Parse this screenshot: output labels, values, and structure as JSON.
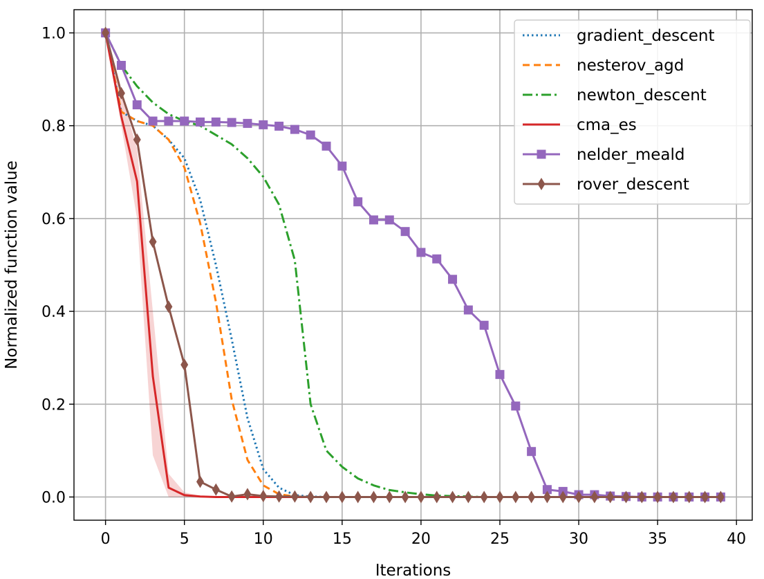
{
  "chart_data": {
    "type": "line",
    "title": "",
    "xlabel": "Iterations",
    "ylabel": "Normalized function value",
    "xlim": [
      -2,
      41
    ],
    "ylim": [
      -0.05,
      1.05
    ],
    "xticks": [
      0,
      5,
      10,
      15,
      20,
      25,
      30,
      35,
      40
    ],
    "yticks": [
      0.0,
      0.2,
      0.4,
      0.6,
      0.8,
      1.0
    ],
    "xtick_labels": [
      "0",
      "5",
      "10",
      "15",
      "20",
      "25",
      "30",
      "35",
      "40"
    ],
    "ytick_labels": [
      "0.0",
      "0.2",
      "0.4",
      "0.6",
      "0.8",
      "1.0"
    ],
    "grid": true,
    "legend_position": "top-right",
    "series": [
      {
        "name": "gradient_descent",
        "color": "#1f77b4",
        "style": "dotted",
        "marker": "none",
        "x": [
          0,
          1,
          2,
          3,
          4,
          5,
          6,
          7,
          8,
          9,
          10,
          11,
          12,
          13,
          14,
          15,
          16,
          17,
          18,
          19,
          20,
          21,
          22,
          23,
          24,
          25,
          26,
          27,
          28,
          29,
          30,
          31,
          32,
          33,
          34,
          35,
          36,
          37,
          38,
          39
        ],
        "y": [
          1.0,
          0.83,
          0.81,
          0.8,
          0.77,
          0.73,
          0.64,
          0.5,
          0.34,
          0.17,
          0.06,
          0.02,
          0.004,
          0.001,
          0,
          0,
          0,
          0,
          0,
          0,
          0,
          0,
          0,
          0,
          0,
          0,
          0,
          0,
          0,
          0,
          0,
          0,
          0,
          0,
          0,
          0,
          0,
          0,
          0,
          0
        ]
      },
      {
        "name": "nesterov_agd",
        "color": "#ff7f0e",
        "style": "dashed",
        "marker": "none",
        "x": [
          0,
          1,
          2,
          3,
          4,
          5,
          6,
          7,
          8,
          9,
          10,
          11,
          12,
          13,
          14,
          15,
          16,
          17,
          18,
          19,
          20,
          21,
          22,
          23,
          24,
          25,
          26,
          27,
          28,
          29,
          30,
          31,
          32,
          33,
          34,
          35,
          36,
          37,
          38,
          39
        ],
        "y": [
          1.0,
          0.83,
          0.81,
          0.8,
          0.77,
          0.71,
          0.59,
          0.42,
          0.21,
          0.08,
          0.025,
          0.006,
          0.001,
          0,
          0,
          0,
          0,
          0,
          0,
          0,
          0,
          0,
          0,
          0,
          0,
          0,
          0,
          0,
          0,
          0,
          0,
          0,
          0,
          0,
          0,
          0,
          0,
          0,
          0,
          0
        ]
      },
      {
        "name": "newton_descent",
        "color": "#2ca02c",
        "style": "dashdot",
        "marker": "none",
        "x": [
          0,
          1,
          2,
          3,
          4,
          5,
          6,
          7,
          8,
          9,
          10,
          11,
          12,
          13,
          14,
          15,
          16,
          17,
          18,
          19,
          20,
          21,
          22,
          23,
          24,
          25,
          26,
          27,
          28,
          29,
          30,
          31,
          32,
          33,
          34,
          35,
          36,
          37,
          38,
          39
        ],
        "y": [
          1.0,
          0.93,
          0.885,
          0.85,
          0.825,
          0.81,
          0.8,
          0.78,
          0.76,
          0.73,
          0.69,
          0.63,
          0.51,
          0.2,
          0.1,
          0.065,
          0.04,
          0.025,
          0.015,
          0.01,
          0.006,
          0.003,
          0.002,
          0.001,
          0,
          0,
          0,
          0,
          0,
          0,
          0,
          0,
          0,
          0,
          0,
          0,
          0,
          0,
          0,
          0
        ]
      },
      {
        "name": "cma_es",
        "color": "#d62728",
        "style": "solid",
        "marker": "none",
        "band": {
          "color": "#d62728",
          "opacity": 0.2
        },
        "x": [
          0,
          1,
          2,
          3,
          4,
          5,
          6,
          7,
          8,
          9,
          10,
          11,
          12,
          13,
          14,
          15,
          16,
          17,
          18,
          19,
          20,
          21,
          22,
          23,
          24,
          25,
          26,
          27,
          28,
          29,
          30,
          31,
          32,
          33,
          34,
          35,
          36,
          37,
          38,
          39
        ],
        "y": [
          1.0,
          0.82,
          0.68,
          0.26,
          0.02,
          0.004,
          0.001,
          0,
          0,
          0,
          0,
          0,
          0,
          0,
          0,
          0,
          0,
          0,
          0,
          0,
          0,
          0,
          0,
          0,
          0,
          0,
          0,
          0,
          0,
          0,
          0,
          0,
          0,
          0,
          0,
          0,
          0,
          0,
          0,
          0
        ],
        "y_low": [
          1.0,
          0.8,
          0.6,
          0.09,
          0.0,
          0,
          0,
          0,
          0,
          0,
          0,
          0,
          0,
          0,
          0,
          0,
          0,
          0,
          0,
          0,
          0,
          0,
          0,
          0,
          0,
          0,
          0,
          0,
          0,
          0,
          0,
          0,
          0,
          0,
          0,
          0,
          0,
          0,
          0,
          0
        ],
        "y_high": [
          1.0,
          0.87,
          0.75,
          0.4,
          0.05,
          0.01,
          0.003,
          0.001,
          0,
          0,
          0,
          0,
          0,
          0,
          0,
          0,
          0,
          0,
          0,
          0,
          0,
          0,
          0,
          0,
          0,
          0,
          0,
          0,
          0,
          0,
          0,
          0,
          0,
          0,
          0,
          0,
          0,
          0,
          0,
          0
        ]
      },
      {
        "name": "nelder_meald",
        "color": "#9467bd",
        "style": "solid",
        "marker": "square",
        "x": [
          0,
          1,
          2,
          3,
          4,
          5,
          6,
          7,
          8,
          9,
          10,
          11,
          12,
          13,
          14,
          15,
          16,
          17,
          18,
          19,
          20,
          21,
          22,
          23,
          24,
          25,
          26,
          27,
          28,
          29,
          30,
          31,
          32,
          33,
          34,
          35,
          36,
          37,
          38,
          39
        ],
        "y": [
          1.0,
          0.93,
          0.845,
          0.81,
          0.81,
          0.81,
          0.808,
          0.808,
          0.807,
          0.805,
          0.802,
          0.799,
          0.792,
          0.78,
          0.756,
          0.713,
          0.636,
          0.597,
          0.597,
          0.572,
          0.527,
          0.513,
          0.469,
          0.403,
          0.37,
          0.264,
          0.196,
          0.098,
          0.016,
          0.012,
          0.005,
          0.005,
          0.002,
          0.001,
          0,
          0,
          0,
          0,
          0,
          0
        ]
      },
      {
        "name": "rover_descent",
        "color": "#8c564b",
        "style": "solid",
        "marker": "diamond",
        "x": [
          0,
          1,
          2,
          3,
          4,
          5,
          6,
          7,
          8,
          9,
          10,
          11,
          12,
          13,
          14,
          15,
          16,
          17,
          18,
          19,
          20,
          21,
          22,
          23,
          24,
          25,
          26,
          27,
          28,
          29,
          30,
          31,
          32,
          33,
          34,
          35,
          36,
          37,
          38,
          39
        ],
        "y": [
          1.0,
          0.87,
          0.77,
          0.55,
          0.41,
          0.285,
          0.033,
          0.016,
          0.001,
          0.006,
          0.002,
          0.001,
          0.001,
          0,
          0,
          0,
          0,
          0,
          0,
          0,
          0,
          0,
          0,
          0,
          0,
          0,
          0,
          0,
          0,
          0,
          0,
          0,
          0,
          0,
          0,
          0,
          0,
          0,
          0,
          0
        ]
      }
    ]
  }
}
